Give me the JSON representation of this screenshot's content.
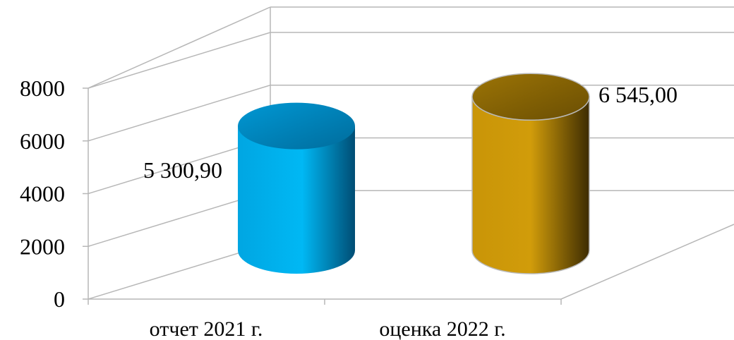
{
  "chart_data": {
    "type": "bar",
    "style": "3d-cylinder",
    "categories": [
      "отчет 2021 г.",
      "оценка 2022 г."
    ],
    "values": [
      5300.9,
      6545.0
    ],
    "data_labels": [
      "5 300,90",
      "6 545,00"
    ],
    "colors": [
      "#00b4f0",
      "#c8960a"
    ],
    "yticks": [
      "0",
      "2000",
      "4000",
      "6000",
      "8000"
    ],
    "ylim": [
      0,
      8000
    ],
    "grid": true,
    "legend": "none"
  }
}
